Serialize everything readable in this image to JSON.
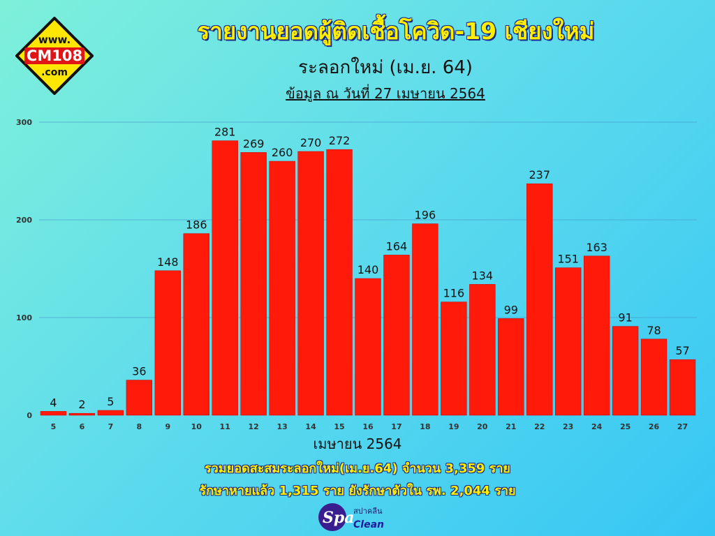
{
  "logo": {
    "line1": "www.",
    "line2": "CM108",
    "line3": ".com"
  },
  "title": "รายงานยอดผู้ติดเชื้อโควิด-19 เชียงใหม่",
  "subtitle": "ระลอกใหม่ (เม.ย. 64)",
  "dateline": "ข้อมูล ณ วันที่ 27 เมษายน 2564",
  "chart_data": {
    "type": "bar",
    "categories": [
      "5",
      "6",
      "7",
      "8",
      "9",
      "10",
      "11",
      "12",
      "13",
      "14",
      "15",
      "16",
      "17",
      "18",
      "19",
      "20",
      "21",
      "22",
      "23",
      "24",
      "25",
      "26",
      "27"
    ],
    "values": [
      4,
      2,
      5,
      36,
      148,
      186,
      281,
      269,
      260,
      270,
      272,
      140,
      164,
      196,
      116,
      134,
      99,
      237,
      151,
      163,
      91,
      78,
      57
    ],
    "xlabel": "เมษายน 2564",
    "ylabel": "",
    "ylim": [
      0,
      300
    ],
    "yticks": [
      0,
      100,
      200,
      300
    ],
    "grid": true,
    "bar_color": "#ff1a0a"
  },
  "footer": {
    "line1": "รวมยอดสะสมระลอกใหม่(เม.ย.64) จำนวน 3,359 ราย",
    "line2": "รักษาหายแล้ว 1,315 ราย ยังรักษาตัวใน รพ. 2,044 ราย"
  },
  "spa_logo": {
    "main": "Spa",
    "thai": "สปาคลีน",
    "sub": "Clean"
  }
}
